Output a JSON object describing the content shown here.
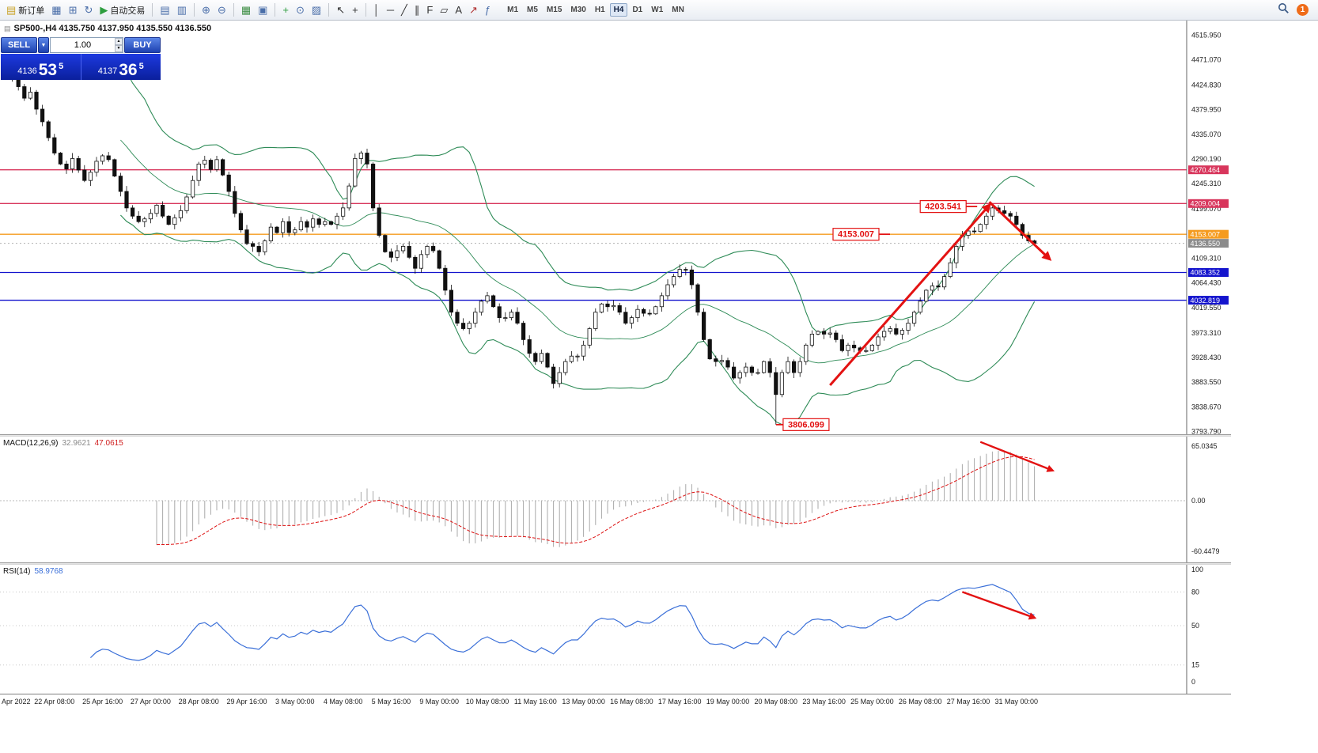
{
  "toolbar": {
    "groups": [
      {
        "name": "trade-group",
        "items": [
          {
            "name": "new-order-button",
            "icon": "new-order-icon",
            "glyph": "▤",
            "color": "#c9a227",
            "label": "新订单"
          },
          {
            "name": "market-watch-button",
            "icon": "market-watch-icon",
            "glyph": "▦",
            "color": "#4a6ea9"
          },
          {
            "name": "navigator-button",
            "icon": "navigator-icon",
            "glyph": "⊞",
            "color": "#4a6ea9"
          },
          {
            "name": "refresh-button",
            "icon": "refresh-icon",
            "glyph": "↻",
            "color": "#4a6ea9"
          },
          {
            "name": "autotrading-button",
            "icon": "autotrading-icon",
            "glyph": "▶",
            "color": "#2e9e3f",
            "label": "自动交易"
          }
        ]
      },
      {
        "name": "chart-windows-group",
        "items": [
          {
            "name": "charts-list-button",
            "icon": "charts-list-icon",
            "glyph": "▤",
            "color": "#4a6ea9"
          },
          {
            "name": "chart-window-button",
            "icon": "chart-window-icon",
            "glyph": "▥",
            "color": "#4a6ea9"
          }
        ]
      },
      {
        "name": "zoom-group",
        "items": [
          {
            "name": "zoom-in-button",
            "icon": "zoom-in-icon",
            "glyph": "⊕",
            "color": "#4a6ea9"
          },
          {
            "name": "zoom-out-button",
            "icon": "zoom-out-icon",
            "glyph": "⊖",
            "color": "#4a6ea9"
          }
        ]
      },
      {
        "name": "window-layout-group",
        "items": [
          {
            "name": "tile-windows-button",
            "icon": "tile-windows-icon",
            "glyph": "▦",
            "color": "#3f8f46"
          },
          {
            "name": "cascade-windows-button",
            "icon": "cascade-windows-icon",
            "glyph": "▣",
            "color": "#4a6ea9"
          }
        ]
      },
      {
        "name": "insert-group",
        "items": [
          {
            "name": "add-indicator-button",
            "icon": "plus-icon",
            "glyph": "+",
            "color": "#2e9e3f"
          },
          {
            "name": "period-button",
            "icon": "clock-icon",
            "glyph": "⊙",
            "color": "#4a6ea9"
          },
          {
            "name": "template-button",
            "icon": "template-icon",
            "glyph": "▨",
            "color": "#4a6ea9"
          }
        ]
      },
      {
        "name": "cursor-group",
        "items": [
          {
            "name": "cursor-button",
            "icon": "cursor-icon",
            "glyph": "↖",
            "color": "#333333"
          },
          {
            "name": "crosshair-button",
            "icon": "crosshair-icon",
            "glyph": "+",
            "color": "#333333"
          }
        ]
      },
      {
        "name": "objects-group",
        "items": [
          {
            "name": "vertical-line-button",
            "icon": "vertical-line-icon",
            "glyph": "│",
            "color": "#333333"
          },
          {
            "name": "horizontal-line-button",
            "icon": "horizontal-line-icon",
            "glyph": "─",
            "color": "#333333"
          },
          {
            "name": "trendline-button",
            "icon": "trendline-icon",
            "glyph": "╱",
            "color": "#333333"
          },
          {
            "name": "channel-button",
            "icon": "channel-icon",
            "glyph": "∥",
            "color": "#333333"
          },
          {
            "name": "fibonacci-button",
            "icon": "fibonacci-icon",
            "glyph": "F",
            "color": "#333333"
          },
          {
            "name": "shapes-button",
            "icon": "shapes-icon",
            "glyph": "▱",
            "color": "#333333"
          },
          {
            "name": "text-button",
            "icon": "text-icon",
            "glyph": "A",
            "color": "#333333"
          },
          {
            "name": "arrow-object-button",
            "icon": "arrow-object-icon",
            "glyph": "↗",
            "color": "#b03030"
          },
          {
            "name": "indicators-button",
            "icon": "function-icon",
            "glyph": "ƒ",
            "color": "#4a6ea9"
          }
        ]
      }
    ],
    "timeframes": [
      {
        "label": "M1"
      },
      {
        "label": "M5"
      },
      {
        "label": "M15"
      },
      {
        "label": "M30"
      },
      {
        "label": "H1"
      },
      {
        "label": "H4",
        "active": true
      },
      {
        "label": "D1"
      },
      {
        "label": "W1"
      },
      {
        "label": "MN"
      }
    ],
    "badge": "1"
  },
  "order_panel": {
    "sell_label": "SELL",
    "buy_label": "BUY",
    "volume": "1.00",
    "sell_price_prefix": "4136",
    "sell_price_big": "53",
    "sell_price_sup": "5",
    "buy_price_prefix": "4137",
    "buy_price_big": "36",
    "buy_price_sup": "5"
  },
  "chart": {
    "title": "SP500-,H4 4135.750 4137.950 4135.550 4136.550"
  },
  "indicators": {
    "macd": {
      "label": "MACD(12,26,9)",
      "value_main": "32.9621",
      "value_signal": "47.0615"
    },
    "rsi": {
      "label": "RSI(14)",
      "value": "58.9768"
    }
  },
  "chart_data": {
    "type": "candlestick",
    "symbol": "SP500-",
    "timeframe": "H4",
    "current_bar_ohlc": {
      "open": 4135.75,
      "high": 4137.95,
      "low": 4135.55,
      "close": 4136.55
    },
    "first_open": 4448,
    "closes": [
      4440,
      4460,
      4422,
      4401,
      4412,
      4381,
      4358,
      4329,
      4301,
      4281,
      4272,
      4291,
      4270,
      4251,
      4266,
      4286,
      4296,
      4289,
      4259,
      4231,
      4201,
      4186,
      4176,
      4181,
      4191,
      4206,
      4186,
      4171,
      4183,
      4196,
      4221,
      4251,
      4281,
      4288,
      4271,
      4289,
      4261,
      4231,
      4191,
      4161,
      4136,
      4131,
      4121,
      4141,
      4166,
      4156,
      4176,
      4156,
      4161,
      4176,
      4166,
      4181,
      4171,
      4176,
      4171,
      4186,
      4201,
      4241,
      4291,
      4301,
      4281,
      4201,
      4151,
      4121,
      4111,
      4123,
      4131,
      4111,
      4091,
      4116,
      4131,
      4123,
      4091,
      4051,
      4011,
      3991,
      3981,
      3991,
      4011,
      4031,
      4041,
      4021,
      4001,
      4001,
      4011,
      3991,
      3961,
      3936,
      3921,
      3936,
      3911,
      3881,
      3901,
      3921,
      3931,
      3931,
      3951,
      3981,
      4011,
      4026,
      4021,
      4023,
      4011,
      3991,
      4001,
      4016,
      4009,
      4008,
      4021,
      4041,
      4061,
      4076,
      4089,
      4088,
      4061,
      4011,
      3961,
      3926,
      3921,
      3923,
      3911,
      3891,
      3901,
      3911,
      3901,
      3901,
      3921,
      3901,
      3861,
      3901,
      3921,
      3901,
      3921,
      3951,
      3971,
      3976,
      3971,
      3973,
      3961,
      3941,
      3951,
      3946,
      3941,
      3941,
      3951,
      3966,
      3976,
      3981,
      3971,
      3978,
      3991,
      4011,
      4031,
      4051,
      4059,
      4057,
      4076,
      4101,
      4131,
      4151,
      4159,
      4158,
      4171,
      4186,
      4201,
      4196,
      4191,
      4186,
      4171,
      4151,
      4141,
      4136.55
    ],
    "special_highs": {
      "164": 4203.541
    },
    "special_lows": {
      "128": 3806.099
    },
    "levels": [
      {
        "price": 4270.464,
        "label": "4270.464",
        "color": "#d8365c"
      },
      {
        "price": 4209.004,
        "label": "4209.004",
        "color": "#d8365c"
      },
      {
        "price": 4153.007,
        "label": "4153.007",
        "color": "#f59b1e"
      },
      {
        "price": 4083.352,
        "label": "4083.352",
        "color": "#1414cd"
      },
      {
        "price": 4032.819,
        "label": "4032.819",
        "color": "#1414cd"
      }
    ],
    "current_price_tag": {
      "price": 4136.55,
      "label": "4136.550",
      "color": "#8c8c8c"
    },
    "price_axis_labels": [
      "4515.950",
      "4471.070",
      "4424.830",
      "4379.950",
      "4335.070",
      "4290.190",
      "4245.310",
      "4199.070",
      "4109.310",
      "4064.430",
      "4019.550",
      "3973.310",
      "3928.430",
      "3883.550",
      "3838.670",
      "3793.790"
    ],
    "macd_axis_labels": [
      {
        "value": 65.0345,
        "text": "65.0345"
      },
      {
        "value": 0,
        "text": "0.00"
      },
      {
        "value": -60.4479,
        "text": "-60.4479"
      }
    ],
    "rsi_axis_labels": [
      {
        "value": 100,
        "text": "100"
      },
      {
        "value": 80,
        "text": "80"
      },
      {
        "value": 50,
        "text": "50"
      },
      {
        "value": 15,
        "text": "15"
      },
      {
        "value": 0,
        "text": "0"
      }
    ],
    "rsi_levels": [
      80,
      50,
      15
    ],
    "time_axis_labels": [
      "Apr 2022",
      "22 Apr 08:00",
      "25 Apr 16:00",
      "27 Apr 00:00",
      "28 Apr 08:00",
      "29 Apr 16:00",
      "3 May 00:00",
      "4 May 08:00",
      "5 May 16:00",
      "9 May 00:00",
      "10 May 08:00",
      "11 May 16:00",
      "13 May 00:00",
      "16 May 08:00",
      "17 May 16:00",
      "19 May 00:00",
      "20 May 08:00",
      "23 May 16:00",
      "25 May 00:00",
      "26 May 08:00",
      "27 May 16:00",
      "31 May 00:00"
    ],
    "bollinger": {
      "period": 20,
      "deviation": 2,
      "color": "#2e8b57"
    },
    "macd_settings": {
      "fast": 12,
      "slow": 26,
      "signal": 9,
      "histogram_color": "#a9a9a9",
      "signal_color": "#dd1111"
    },
    "rsi_settings": {
      "period": 14,
      "color": "#3a6fd8"
    },
    "annotations": {
      "color": "#e31212",
      "labels": [
        {
          "name": "peak-price-label",
          "text": "4203.541",
          "bar": 152,
          "price": 4203.541,
          "tick": "right"
        },
        {
          "name": "mid-price-label",
          "text": "4153.007",
          "bar": 137.5,
          "price": 4153.007,
          "tick": "right"
        },
        {
          "name": "low-price-label",
          "text": "3806.099",
          "bar": 129.2,
          "price": 3806.099,
          "tick": "left"
        }
      ],
      "arrows_main": [
        {
          "name": "rally-arrow",
          "from": [
            137,
            3878
          ],
          "to": [
            163.5,
            4206
          ]
        },
        {
          "name": "reversal-arrow",
          "from": [
            163.5,
            4212
          ],
          "to": [
            173.5,
            4108
          ]
        }
      ],
      "arrow_macd": {
        "from": [
          162,
          70
        ],
        "to": [
          174,
          36
        ]
      },
      "arrow_rsi": {
        "from": [
          159,
          80
        ],
        "to": [
          171,
          57
        ]
      }
    }
  }
}
